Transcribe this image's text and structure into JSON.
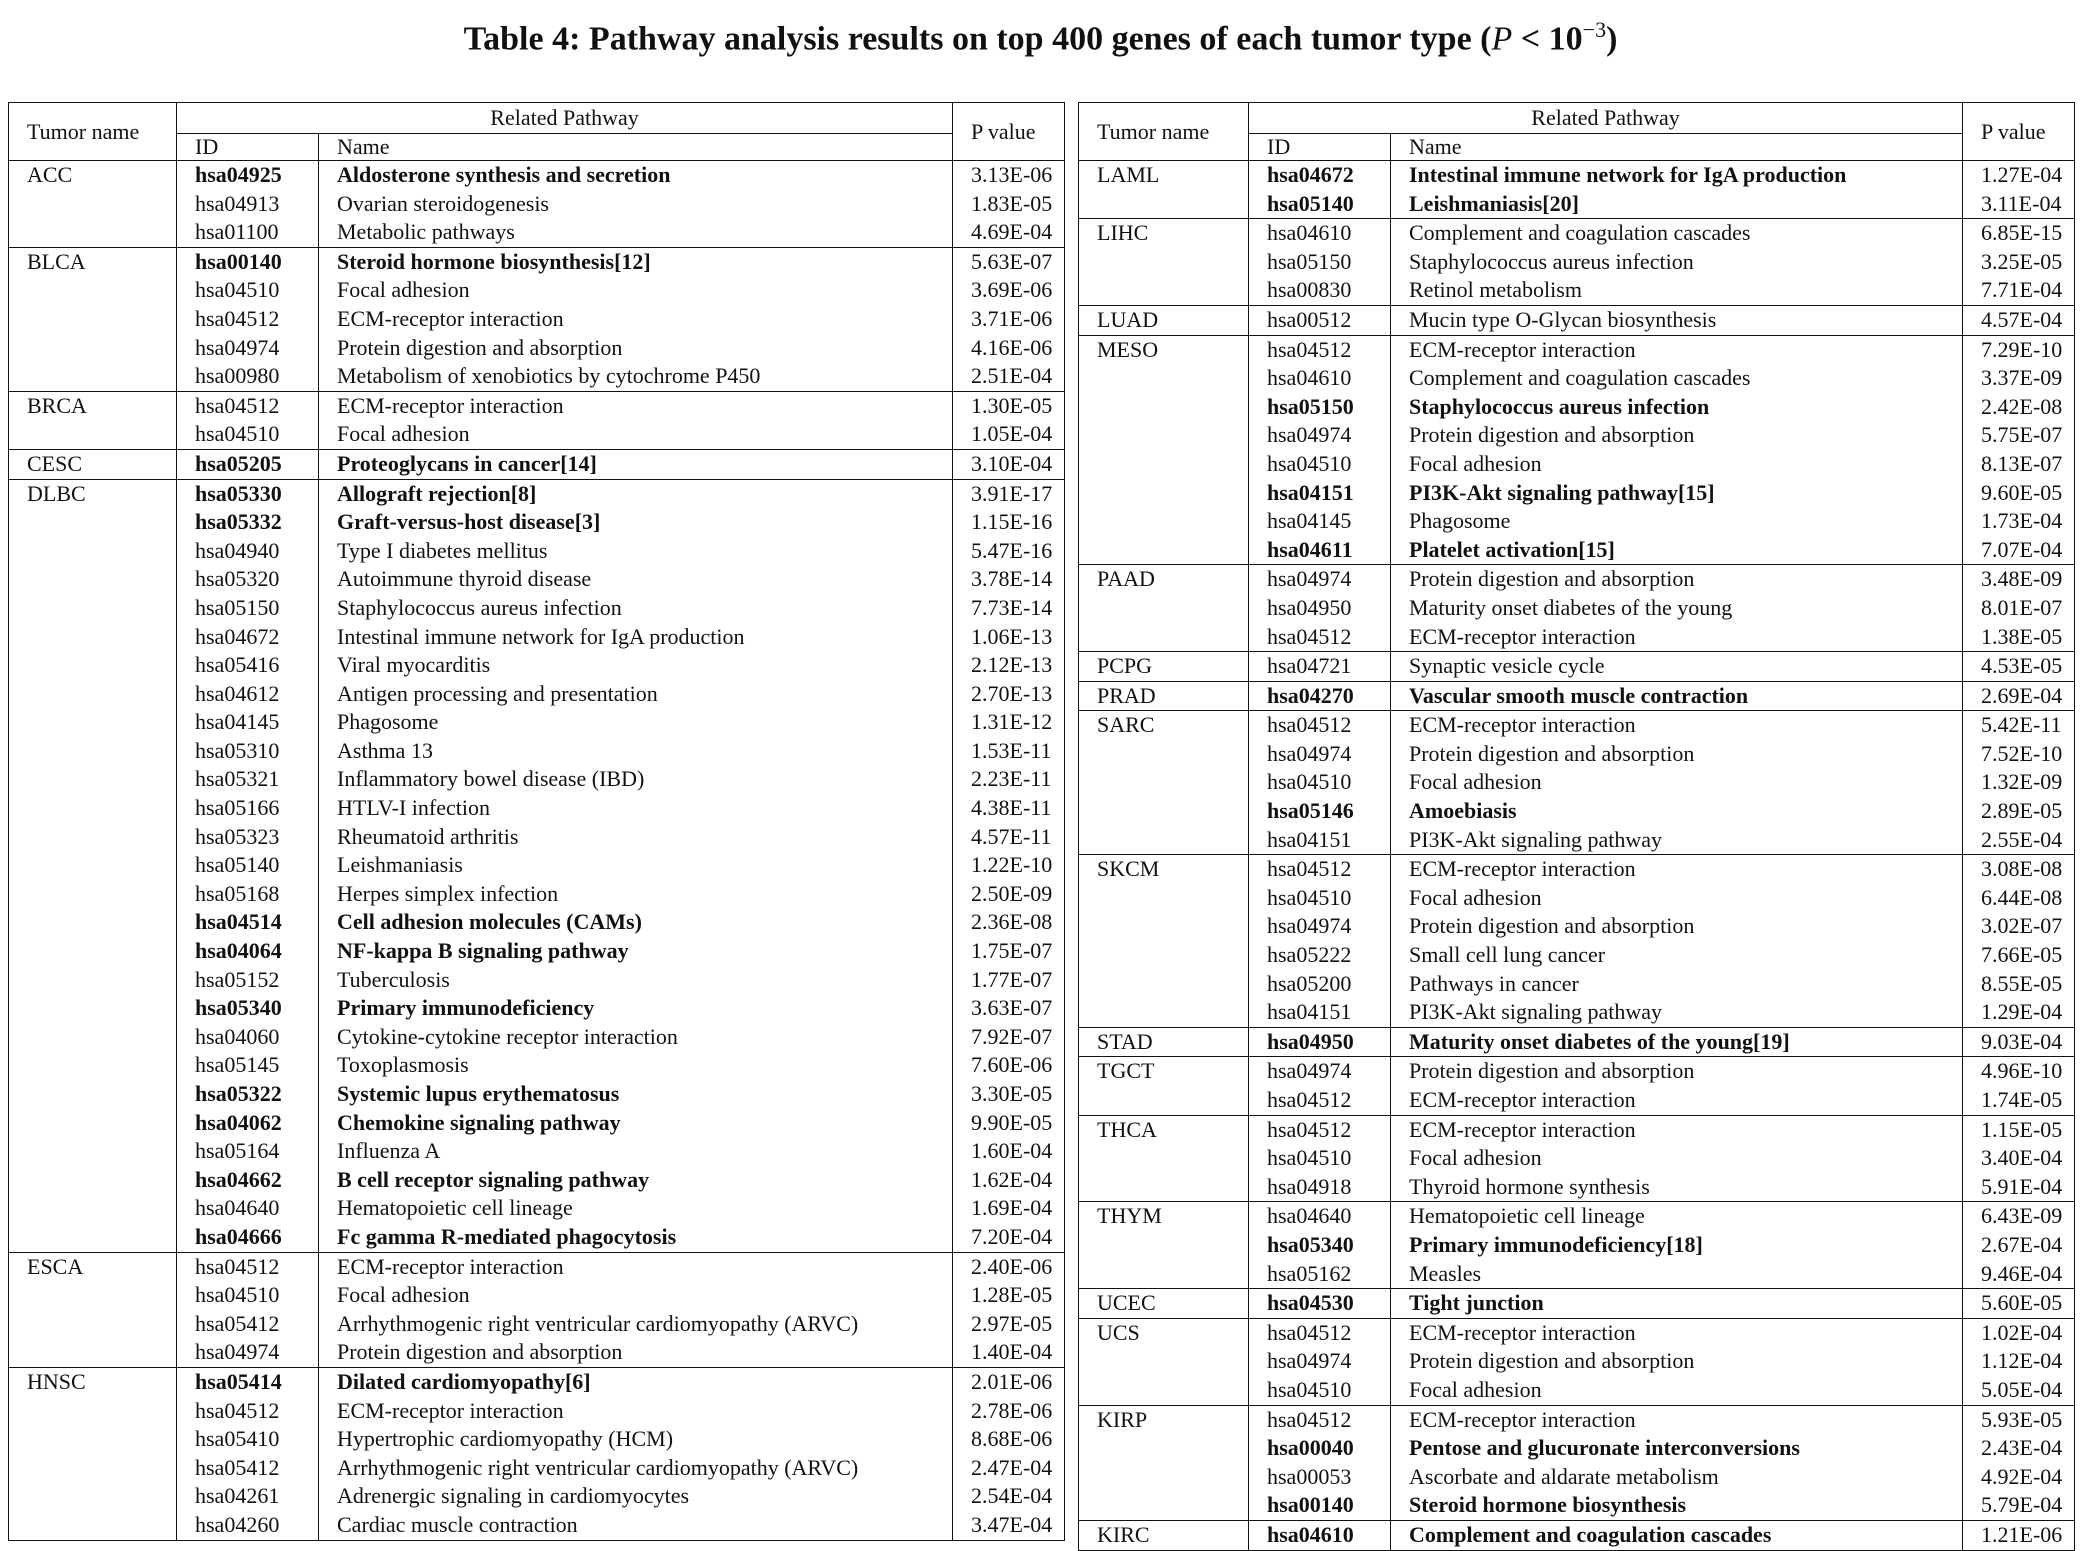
{
  "caption": {
    "main": "Table 4: Pathway analysis results on top 400 genes of each tumor type (",
    "p": "P",
    "lt": " < 10",
    "exp": "−3",
    "close": ")"
  },
  "headers": {
    "tumor": "Tumor name",
    "related": "Related Pathway",
    "id": "ID",
    "name": "Name",
    "pvalue": "P value"
  },
  "left": [
    {
      "tumor": "ACC",
      "rows": [
        {
          "id": "hsa04925",
          "name": "Aldosterone synthesis and secretion",
          "p": "3.13E-06",
          "bold": true
        },
        {
          "id": "hsa04913",
          "name": "Ovarian steroidogenesis",
          "p": "1.83E-05"
        },
        {
          "id": "hsa01100",
          "name": "Metabolic pathways",
          "p": "4.69E-04"
        }
      ]
    },
    {
      "tumor": "BLCA",
      "rows": [
        {
          "id": "hsa00140",
          "name": "Steroid hormone biosynthesis[12]",
          "p": "5.63E-07",
          "bold": true
        },
        {
          "id": "hsa04510",
          "name": "Focal adhesion",
          "p": "3.69E-06"
        },
        {
          "id": "hsa04512",
          "name": "ECM-receptor interaction",
          "p": "3.71E-06"
        },
        {
          "id": "hsa04974",
          "name": "Protein digestion and absorption",
          "p": "4.16E-06"
        },
        {
          "id": "hsa00980",
          "name": "Metabolism of xenobiotics by cytochrome P450",
          "p": "2.51E-04"
        }
      ]
    },
    {
      "tumor": "BRCA",
      "rows": [
        {
          "id": "hsa04512",
          "name": "ECM-receptor interaction",
          "p": "1.30E-05"
        },
        {
          "id": "hsa04510",
          "name": "Focal adhesion",
          "p": "1.05E-04"
        }
      ]
    },
    {
      "tumor": "CESC",
      "rows": [
        {
          "id": "hsa05205",
          "name": "Proteoglycans in cancer[14]",
          "p": "3.10E-04",
          "bold": true
        }
      ]
    },
    {
      "tumor": "DLBC",
      "rows": [
        {
          "id": "hsa05330",
          "name": "Allograft rejection[8]",
          "p": "3.91E-17",
          "bold": true
        },
        {
          "id": "hsa05332",
          "name": "Graft-versus-host disease[3]",
          "p": "1.15E-16",
          "bold": true
        },
        {
          "id": "hsa04940",
          "name": "Type I diabetes mellitus",
          "p": "5.47E-16"
        },
        {
          "id": "hsa05320",
          "name": "Autoimmune thyroid disease",
          "p": "3.78E-14"
        },
        {
          "id": "hsa05150",
          "name": "Staphylococcus aureus infection",
          "p": "7.73E-14"
        },
        {
          "id": "hsa04672",
          "name": "Intestinal immune network for IgA production",
          "p": "1.06E-13"
        },
        {
          "id": "hsa05416",
          "name": "Viral myocarditis",
          "p": "2.12E-13"
        },
        {
          "id": "hsa04612",
          "name": "Antigen processing and presentation",
          "p": "2.70E-13"
        },
        {
          "id": "hsa04145",
          "name": "Phagosome",
          "p": "1.31E-12"
        },
        {
          "id": "hsa05310",
          "name": "Asthma 13",
          "p": "1.53E-11"
        },
        {
          "id": "hsa05321",
          "name": "Inflammatory bowel disease (IBD)",
          "p": "2.23E-11"
        },
        {
          "id": "hsa05166",
          "name": "HTLV-I infection",
          "p": "4.38E-11"
        },
        {
          "id": "hsa05323",
          "name": "Rheumatoid arthritis",
          "p": "4.57E-11"
        },
        {
          "id": "hsa05140",
          "name": "Leishmaniasis",
          "p": "1.22E-10"
        },
        {
          "id": "hsa05168",
          "name": "Herpes simplex infection",
          "p": "2.50E-09"
        },
        {
          "id": "hsa04514",
          "name": "Cell adhesion molecules (CAMs)",
          "p": "2.36E-08",
          "bold": true
        },
        {
          "id": "hsa04064",
          "name": "NF-kappa B signaling pathway",
          "p": "1.75E-07",
          "bold": true
        },
        {
          "id": "hsa05152",
          "name": "Tuberculosis",
          "p": "1.77E-07"
        },
        {
          "id": "hsa05340",
          "name": "Primary immunodeficiency",
          "p": "3.63E-07",
          "bold": true
        },
        {
          "id": "hsa04060",
          "name": "Cytokine-cytokine receptor interaction",
          "p": "7.92E-07"
        },
        {
          "id": "hsa05145",
          "name": "Toxoplasmosis",
          "p": "7.60E-06"
        },
        {
          "id": "hsa05322",
          "name": "Systemic lupus erythematosus",
          "p": "3.30E-05",
          "bold": true
        },
        {
          "id": "hsa04062",
          "name": "Chemokine signaling pathway",
          "p": "9.90E-05",
          "bold": true
        },
        {
          "id": "hsa05164",
          "name": "Influenza A",
          "p": "1.60E-04"
        },
        {
          "id": "hsa04662",
          "name": "B cell receptor signaling pathway",
          "p": "1.62E-04",
          "bold": true
        },
        {
          "id": "hsa04640",
          "name": "Hematopoietic cell lineage",
          "p": "1.69E-04"
        },
        {
          "id": "hsa04666",
          "name": "Fc gamma R-mediated phagocytosis",
          "p": "7.20E-04",
          "bold": true
        }
      ]
    },
    {
      "tumor": "ESCA",
      "rows": [
        {
          "id": "hsa04512",
          "name": "ECM-receptor interaction",
          "p": "2.40E-06"
        },
        {
          "id": "hsa04510",
          "name": "Focal adhesion",
          "p": "1.28E-05"
        },
        {
          "id": "hsa05412",
          "name": "Arrhythmogenic right ventricular cardiomyopathy (ARVC)",
          "p": "2.97E-05"
        },
        {
          "id": "hsa04974",
          "name": "Protein digestion and absorption",
          "p": "1.40E-04"
        }
      ]
    },
    {
      "tumor": "HNSC",
      "rows": [
        {
          "id": "hsa05414",
          "name": "Dilated cardiomyopathy[6]",
          "p": "2.01E-06",
          "bold": true
        },
        {
          "id": "hsa04512",
          "name": "ECM-receptor interaction",
          "p": "2.78E-06"
        },
        {
          "id": "hsa05410",
          "name": "Hypertrophic cardiomyopathy (HCM)",
          "p": "8.68E-06"
        },
        {
          "id": "hsa05412",
          "name": "Arrhythmogenic right ventricular cardiomyopathy (ARVC)",
          "p": "2.47E-04"
        },
        {
          "id": "hsa04261",
          "name": "Adrenergic signaling in cardiomyocytes",
          "p": "2.54E-04"
        },
        {
          "id": "hsa04260",
          "name": "Cardiac muscle contraction",
          "p": "3.47E-04"
        }
      ]
    }
  ],
  "right": [
    {
      "tumor": "LAML",
      "rows": [
        {
          "id": "hsa04672",
          "name": "Intestinal immune network for IgA production",
          "p": "1.27E-04",
          "bold": true
        },
        {
          "id": "hsa05140",
          "name": "Leishmaniasis[20]",
          "p": "3.11E-04",
          "bold": true
        }
      ]
    },
    {
      "tumor": "LIHC",
      "rows": [
        {
          "id": "hsa04610",
          "name": "Complement and coagulation cascades",
          "p": "6.85E-15"
        },
        {
          "id": "hsa05150",
          "name": "Staphylococcus aureus infection",
          "p": "3.25E-05"
        },
        {
          "id": "hsa00830",
          "name": "Retinol metabolism",
          "p": "7.71E-04"
        }
      ]
    },
    {
      "tumor": "LUAD",
      "rows": [
        {
          "id": "hsa00512",
          "name": "Mucin type O-Glycan biosynthesis",
          "p": "4.57E-04"
        }
      ]
    },
    {
      "tumor": "MESO",
      "rows": [
        {
          "id": "hsa04512",
          "name": "ECM-receptor interaction",
          "p": "7.29E-10"
        },
        {
          "id": "hsa04610",
          "name": "Complement and coagulation cascades",
          "p": "3.37E-09"
        },
        {
          "id": "hsa05150",
          "name": "Staphylococcus aureus infection",
          "p": "2.42E-08",
          "bold": true
        },
        {
          "id": "hsa04974",
          "name": "Protein digestion and absorption",
          "p": "5.75E-07"
        },
        {
          "id": "hsa04510",
          "name": "Focal adhesion",
          "p": "8.13E-07"
        },
        {
          "id": "hsa04151",
          "name": "PI3K-Akt signaling pathway[15]",
          "p": "9.60E-05",
          "bold": true
        },
        {
          "id": "hsa04145",
          "name": "Phagosome",
          "p": "1.73E-04"
        },
        {
          "id": "hsa04611",
          "name": "Platelet activation[15]",
          "p": "7.07E-04",
          "bold": true
        }
      ]
    },
    {
      "tumor": "PAAD",
      "rows": [
        {
          "id": "hsa04974",
          "name": "Protein digestion and absorption",
          "p": "3.48E-09"
        },
        {
          "id": "hsa04950",
          "name": "Maturity onset diabetes of the young",
          "p": "8.01E-07"
        },
        {
          "id": "hsa04512",
          "name": "ECM-receptor interaction",
          "p": "1.38E-05"
        }
      ]
    },
    {
      "tumor": "PCPG",
      "rows": [
        {
          "id": "hsa04721",
          "name": "Synaptic vesicle cycle",
          "p": "4.53E-05"
        }
      ]
    },
    {
      "tumor": "PRAD",
      "rows": [
        {
          "id": "hsa04270",
          "name": "Vascular smooth muscle contraction",
          "p": "2.69E-04",
          "bold": true
        }
      ]
    },
    {
      "tumor": "SARC",
      "rows": [
        {
          "id": "hsa04512",
          "name": "ECM-receptor interaction",
          "p": "5.42E-11"
        },
        {
          "id": "hsa04974",
          "name": "Protein digestion and absorption",
          "p": "7.52E-10"
        },
        {
          "id": "hsa04510",
          "name": "Focal adhesion",
          "p": "1.32E-09"
        },
        {
          "id": "hsa05146",
          "name": "Amoebiasis",
          "p": "2.89E-05",
          "bold": true
        },
        {
          "id": "hsa04151",
          "name": "PI3K-Akt signaling pathway",
          "p": "2.55E-04"
        }
      ]
    },
    {
      "tumor": "SKCM",
      "rows": [
        {
          "id": "hsa04512",
          "name": "ECM-receptor interaction",
          "p": "3.08E-08"
        },
        {
          "id": "hsa04510",
          "name": "Focal adhesion",
          "p": "6.44E-08"
        },
        {
          "id": "hsa04974",
          "name": "Protein digestion and absorption",
          "p": "3.02E-07"
        },
        {
          "id": "hsa05222",
          "name": "Small cell lung cancer",
          "p": "7.66E-05"
        },
        {
          "id": "hsa05200",
          "name": "Pathways in cancer",
          "p": "8.55E-05"
        },
        {
          "id": "hsa04151",
          "name": "PI3K-Akt signaling pathway",
          "p": "1.29E-04"
        }
      ]
    },
    {
      "tumor": "STAD",
      "rows": [
        {
          "id": "hsa04950",
          "name": "Maturity onset diabetes of the young[19]",
          "p": "9.03E-04",
          "bold": true
        }
      ]
    },
    {
      "tumor": "TGCT",
      "rows": [
        {
          "id": "hsa04974",
          "name": "Protein digestion and absorption",
          "p": "4.96E-10"
        },
        {
          "id": "hsa04512",
          "name": "ECM-receptor interaction",
          "p": "1.74E-05"
        }
      ]
    },
    {
      "tumor": "THCA",
      "rows": [
        {
          "id": "hsa04512",
          "name": "ECM-receptor interaction",
          "p": "1.15E-05"
        },
        {
          "id": "hsa04510",
          "name": "Focal adhesion",
          "p": "3.40E-04"
        },
        {
          "id": "hsa04918",
          "name": "Thyroid hormone synthesis",
          "p": "5.91E-04"
        }
      ]
    },
    {
      "tumor": "THYM",
      "rows": [
        {
          "id": "hsa04640",
          "name": "Hematopoietic cell lineage",
          "p": "6.43E-09"
        },
        {
          "id": "hsa05340",
          "name": "Primary immunodeficiency[18]",
          "p": "2.67E-04",
          "bold": true
        },
        {
          "id": "hsa05162",
          "name": "Measles",
          "p": "9.46E-04"
        }
      ]
    },
    {
      "tumor": "UCEC",
      "rows": [
        {
          "id": "hsa04530",
          "name": "Tight junction",
          "p": "5.60E-05",
          "bold": true
        }
      ]
    },
    {
      "tumor": "UCS",
      "rows": [
        {
          "id": "hsa04512",
          "name": "ECM-receptor interaction",
          "p": "1.02E-04"
        },
        {
          "id": "hsa04974",
          "name": "Protein digestion and absorption",
          "p": "1.12E-04"
        },
        {
          "id": "hsa04510",
          "name": "Focal adhesion",
          "p": "5.05E-04"
        }
      ]
    },
    {
      "tumor": "KIRP",
      "rows": [
        {
          "id": "hsa04512",
          "name": "ECM-receptor interaction",
          "p": "5.93E-05"
        },
        {
          "id": "hsa00040",
          "name": "Pentose and glucuronate interconversions",
          "p": "2.43E-04",
          "bold": true
        },
        {
          "id": "hsa00053",
          "name": "Ascorbate and aldarate metabolism",
          "p": "4.92E-04"
        },
        {
          "id": "hsa00140",
          "name": "Steroid hormone biosynthesis",
          "p": "5.79E-04",
          "bold": true
        }
      ]
    },
    {
      "tumor": "KIRC",
      "rows": [
        {
          "id": "hsa04610",
          "name": "Complement and coagulation cascades",
          "p": "1.21E-06",
          "bold": true
        }
      ]
    }
  ]
}
